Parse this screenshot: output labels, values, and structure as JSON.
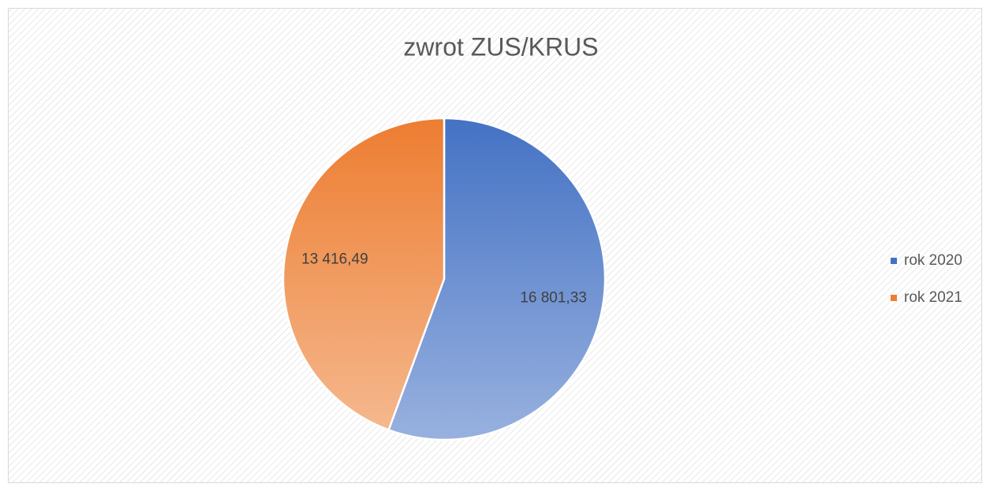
{
  "chart_data": {
    "type": "pie",
    "title": "zwrot ZUS/KRUS",
    "categories": [
      "rok 2020",
      "rok 2021"
    ],
    "values": [
      16801.33,
      13416.49
    ],
    "value_labels": [
      "16 801,33",
      "13 416,49"
    ],
    "colors": [
      "#4472c4",
      "#ed7d31"
    ],
    "legend": "right"
  }
}
